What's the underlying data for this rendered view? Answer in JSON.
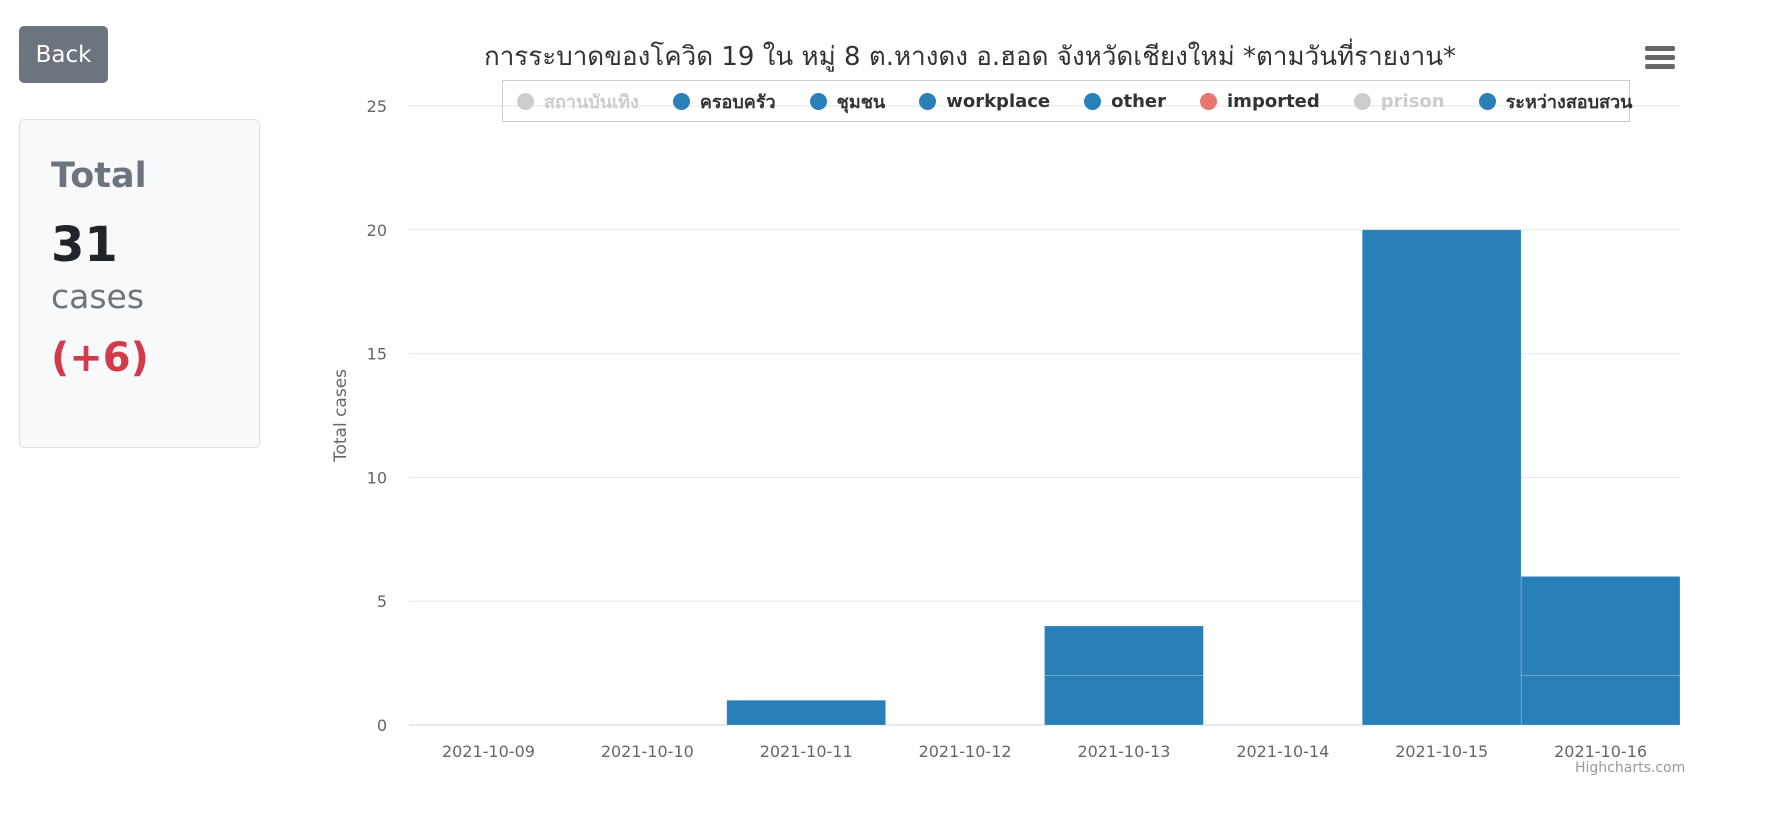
{
  "back_label": "Back",
  "summary": {
    "title": "Total",
    "count": "31",
    "unit": "cases",
    "delta": "(+6)"
  },
  "chart_data": {
    "type": "bar",
    "stacked": true,
    "title": "การระบาดของโควิด 19 ใน หมู่ 8 ต.หางดง อ.ฮอด จังหวัดเชียงใหม่ *ตามวันที่รายงาน*",
    "xlabel": "",
    "ylabel": "Total cases",
    "ylim": [
      0,
      25
    ],
    "yticks": [
      0,
      5,
      10,
      15,
      20,
      25
    ],
    "grid": true,
    "legend_position": "top",
    "categories": [
      "2021-10-09",
      "2021-10-10",
      "2021-10-11",
      "2021-10-12",
      "2021-10-13",
      "2021-10-14",
      "2021-10-15",
      "2021-10-16"
    ],
    "series": [
      {
        "name": "สถานบันเทิง",
        "color": "#cccccc",
        "visible": false,
        "values": [
          0,
          0,
          0,
          0,
          0,
          0,
          0,
          0
        ]
      },
      {
        "name": "ครอบครัว",
        "color": "#2980b9",
        "visible": true,
        "values": [
          0,
          0,
          0,
          0,
          2,
          0,
          0,
          2
        ]
      },
      {
        "name": "ชุมชน",
        "color": "#2980b9",
        "visible": true,
        "values": [
          0,
          0,
          1,
          0,
          2,
          0,
          20,
          4
        ]
      },
      {
        "name": "workplace",
        "color": "#2980b9",
        "visible": true,
        "values": [
          0,
          0,
          0,
          0,
          0,
          0,
          0,
          0
        ]
      },
      {
        "name": "other",
        "color": "#2980b9",
        "visible": true,
        "values": [
          0,
          0,
          0,
          0,
          0,
          0,
          0,
          0
        ]
      },
      {
        "name": "imported",
        "color": "#e8756e",
        "visible": true,
        "values": [
          0,
          0,
          0,
          0,
          0,
          0,
          0,
          0
        ]
      },
      {
        "name": "prison",
        "color": "#cccccc",
        "visible": false,
        "values": [
          0,
          0,
          0,
          0,
          0,
          0,
          0,
          0
        ]
      },
      {
        "name": "ระหว่างสอบสวน",
        "color": "#2980b9",
        "visible": true,
        "values": [
          0,
          0,
          0,
          0,
          0,
          0,
          0,
          0
        ]
      }
    ]
  },
  "menu_icon": "hamburger-menu-icon",
  "credits": "Highcharts.com"
}
